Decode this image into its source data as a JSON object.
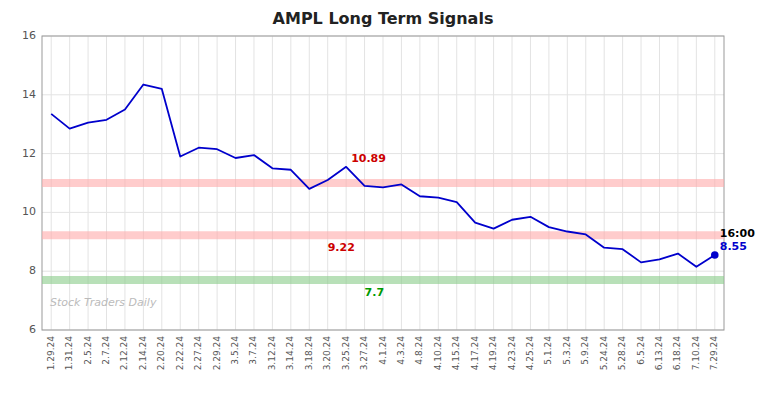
{
  "chart_data": {
    "type": "line",
    "title": "AMPL Long Term Signals",
    "watermark": "Stock Traders Daily",
    "color": "#0000cc",
    "grid": true,
    "ylim": [
      6,
      16
    ],
    "yticks": [
      6,
      8,
      10,
      12,
      14,
      16
    ],
    "categories": [
      "1.29.24",
      "1.31.24",
      "2.5.24",
      "2.7.24",
      "2.12.24",
      "2.14.24",
      "2.20.24",
      "2.22.24",
      "2.27.24",
      "2.29.24",
      "3.5.24",
      "3.7.24",
      "3.12.24",
      "3.14.24",
      "3.18.24",
      "3.20.24",
      "3.25.24",
      "3.27.24",
      "4.1.24",
      "4.3.24",
      "4.8.24",
      "4.10.24",
      "4.15.24",
      "4.17.24",
      "4.19.24",
      "4.23.24",
      "4.25.24",
      "5.1.24",
      "5.3.24",
      "5.9.24",
      "5.24.24",
      "5.28.24",
      "6.5.24",
      "6.13.24",
      "6.18.24",
      "7.10.24",
      "7.29.24"
    ],
    "values": [
      13.35,
      12.85,
      13.05,
      13.15,
      13.5,
      14.35,
      14.2,
      11.9,
      12.2,
      12.15,
      11.85,
      11.95,
      11.5,
      11.45,
      10.8,
      11.1,
      11.55,
      10.9,
      10.85,
      10.95,
      10.55,
      10.5,
      10.35,
      9.65,
      9.45,
      9.75,
      9.85,
      9.5,
      9.35,
      9.25,
      8.8,
      8.75,
      8.3,
      8.4,
      8.6,
      8.15,
      8.55
    ],
    "reference_lines": [
      {
        "value": 11.0,
        "color": "#ffaaaa"
      },
      {
        "value": 9.22,
        "color": "#ffaaaa",
        "label": "9.22",
        "label_color": "#cc0000",
        "category": "3.20.24"
      },
      {
        "value": 7.7,
        "color": "#88cc88",
        "label": "7.7",
        "label_color": "#009900",
        "category": "3.27.24"
      }
    ],
    "annotations": [
      {
        "text": "10.89",
        "color": "#cc0000",
        "category": "3.25.24"
      },
      {
        "text": "8.55",
        "color": "#0000cc",
        "category": "7.29.24"
      },
      {
        "text": "16:00",
        "color": "#000000",
        "category": "7.29.24"
      }
    ]
  }
}
